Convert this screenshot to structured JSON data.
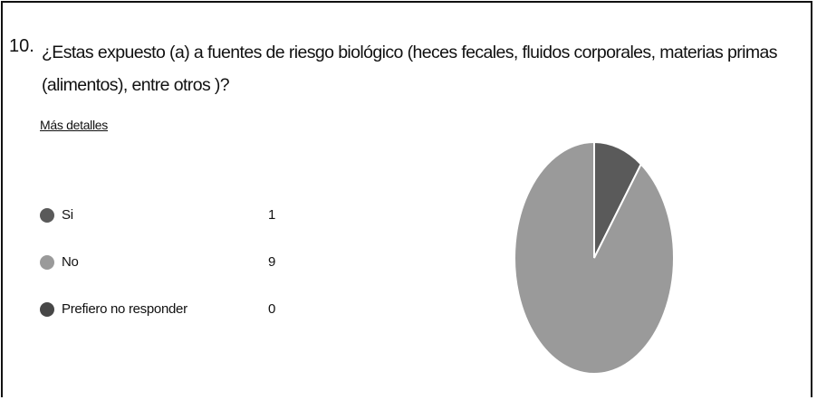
{
  "chart_data": {
    "type": "pie",
    "number": "10.",
    "title": "¿Estas expuesto (a) a fuentes de riesgo biológico (heces fecales, fluidos corporales, materias primas (alimentos), entre otros )?",
    "link": "Más detalles",
    "categories": [
      "Si",
      "No",
      "Prefiero no responder"
    ],
    "values": [
      1,
      9,
      0
    ],
    "colors": [
      "#5a5a5a",
      "#9a9a9a",
      "#474747"
    ]
  }
}
